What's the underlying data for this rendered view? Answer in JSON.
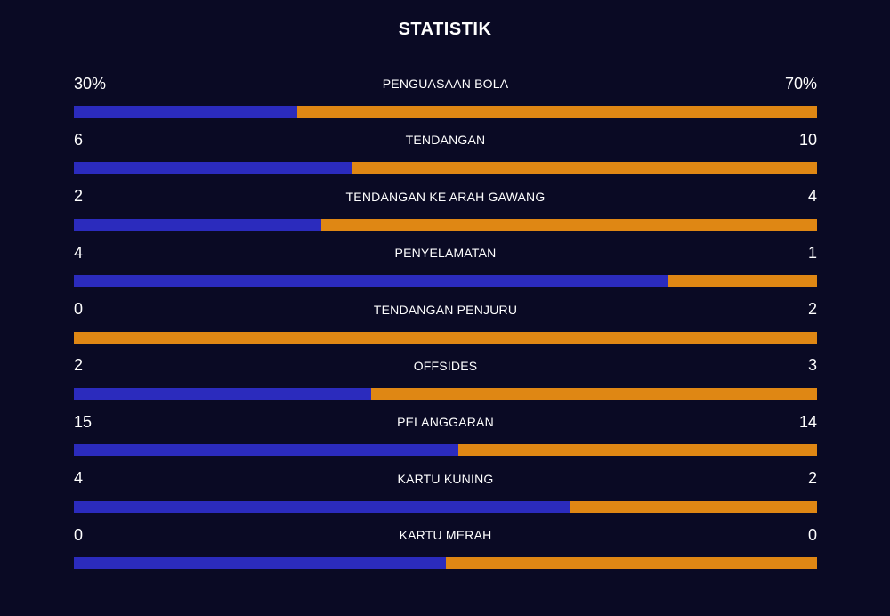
{
  "title": "STATISTIK",
  "colors": {
    "background": "#0a0a24",
    "home_bar": "#2b2bbd",
    "away_bar": "#df8714"
  },
  "stats": [
    {
      "label": "PENGUASAAN BOLA",
      "home": "30%",
      "away": "70%",
      "home_share": 0.3
    },
    {
      "label": "TENDANGAN",
      "home": "6",
      "away": "10",
      "home_share": 0.375
    },
    {
      "label": "TENDANGAN KE ARAH GAWANG",
      "home": "2",
      "away": "4",
      "home_share": 0.333
    },
    {
      "label": "PENYELAMATAN",
      "home": "4",
      "away": "1",
      "home_share": 0.8
    },
    {
      "label": "TENDANGAN PENJURU",
      "home": "0",
      "away": "2",
      "home_share": 0.0
    },
    {
      "label": "OFFSIDES",
      "home": "2",
      "away": "3",
      "home_share": 0.4
    },
    {
      "label": "PELANGGARAN",
      "home": "15",
      "away": "14",
      "home_share": 0.517
    },
    {
      "label": "KARTU KUNING",
      "home": "4",
      "away": "2",
      "home_share": 0.667
    },
    {
      "label": "KARTU MERAH",
      "home": "0",
      "away": "0",
      "home_share": 0.5
    }
  ]
}
